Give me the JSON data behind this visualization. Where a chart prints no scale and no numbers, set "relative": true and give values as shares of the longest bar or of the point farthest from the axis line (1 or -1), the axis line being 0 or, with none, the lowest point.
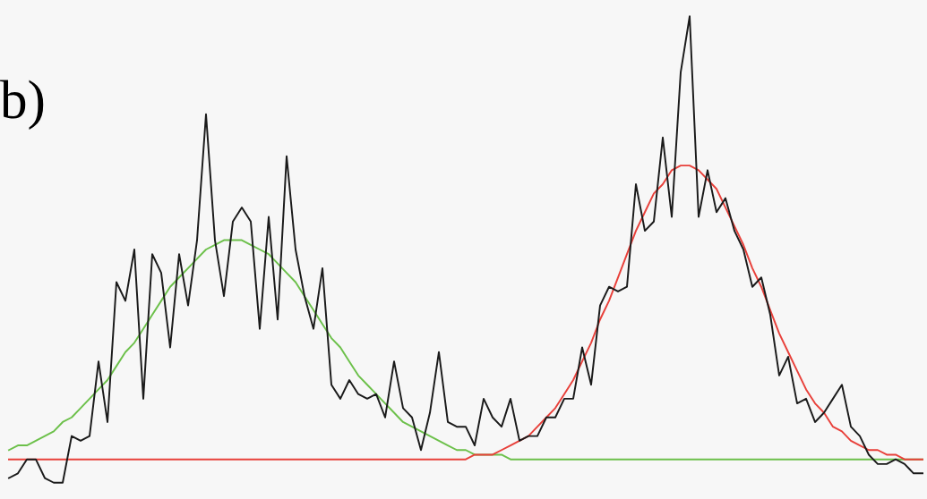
{
  "chart_data": {
    "type": "line",
    "relative": true,
    "annotations": [
      "b)"
    ],
    "categories": [
      null,
      null,
      null,
      null,
      null,
      null,
      null,
      null,
      null,
      null,
      null,
      null,
      null,
      null,
      null,
      null,
      null,
      null,
      null,
      null,
      null,
      null,
      null,
      null,
      null,
      null,
      null,
      null,
      null,
      null,
      null,
      null,
      null,
      null,
      null,
      null,
      null,
      null,
      null,
      null,
      null,
      null,
      null,
      null,
      null,
      null,
      null,
      null,
      null,
      null,
      null,
      null,
      null,
      null,
      null,
      null,
      null,
      null,
      null,
      null,
      null,
      null,
      null,
      null,
      null,
      null,
      null,
      null,
      null,
      null,
      null,
      null,
      null,
      null,
      null,
      null,
      null,
      null,
      null,
      null,
      null,
      null,
      null,
      null,
      null,
      null,
      null,
      null,
      null,
      null,
      null,
      null,
      null,
      null,
      null,
      null,
      null,
      null,
      null,
      null,
      null,
      null,
      null
    ],
    "series": [
      {
        "color": "#6cc04a",
        "values": [
          0.07,
          0.08,
          0.08,
          0.09,
          0.1,
          0.11,
          0.13,
          0.14,
          0.16,
          0.18,
          0.2,
          0.22,
          0.25,
          0.28,
          0.3,
          0.33,
          0.36,
          0.39,
          0.42,
          0.44,
          0.46,
          0.48,
          0.5,
          0.51,
          0.52,
          0.52,
          0.52,
          0.51,
          0.5,
          0.49,
          0.47,
          0.45,
          0.43,
          0.4,
          0.37,
          0.34,
          0.31,
          0.29,
          0.26,
          0.23,
          0.21,
          0.19,
          0.17,
          0.15,
          0.13,
          0.12,
          0.11,
          0.1,
          0.09,
          0.08,
          0.07,
          0.07,
          0.06,
          0.06,
          0.06,
          0.06,
          0.05,
          0.05,
          0.05,
          0.05,
          0.05,
          0.05,
          0.05,
          0.05,
          0.05,
          0.05,
          0.05,
          0.05,
          0.05,
          0.05,
          0.05,
          0.05,
          0.05,
          0.05,
          0.05,
          0.05,
          0.05,
          0.05,
          0.05,
          0.05,
          0.05,
          0.05,
          0.05,
          0.05,
          0.05,
          0.05,
          0.05,
          0.05,
          0.05,
          0.05,
          0.05,
          0.05,
          0.05,
          0.05,
          0.05,
          0.05,
          0.05,
          0.05,
          0.05,
          0.05,
          0.05,
          0.05,
          0.05
        ]
      },
      {
        "color": "#e8403a",
        "values": [
          0.05,
          0.05,
          0.05,
          0.05,
          0.05,
          0.05,
          0.05,
          0.05,
          0.05,
          0.05,
          0.05,
          0.05,
          0.05,
          0.05,
          0.05,
          0.05,
          0.05,
          0.05,
          0.05,
          0.05,
          0.05,
          0.05,
          0.05,
          0.05,
          0.05,
          0.05,
          0.05,
          0.05,
          0.05,
          0.05,
          0.05,
          0.05,
          0.05,
          0.05,
          0.05,
          0.05,
          0.05,
          0.05,
          0.05,
          0.05,
          0.05,
          0.05,
          0.05,
          0.05,
          0.05,
          0.05,
          0.05,
          0.05,
          0.05,
          0.05,
          0.05,
          0.05,
          0.06,
          0.06,
          0.06,
          0.07,
          0.08,
          0.09,
          0.1,
          0.12,
          0.14,
          0.16,
          0.19,
          0.22,
          0.26,
          0.3,
          0.35,
          0.39,
          0.44,
          0.49,
          0.54,
          0.58,
          0.62,
          0.64,
          0.67,
          0.68,
          0.68,
          0.67,
          0.65,
          0.63,
          0.59,
          0.55,
          0.51,
          0.46,
          0.42,
          0.37,
          0.32,
          0.28,
          0.24,
          0.2,
          0.17,
          0.15,
          0.12,
          0.11,
          0.09,
          0.08,
          0.07,
          0.07,
          0.06,
          0.06,
          0.05,
          0.05,
          0.05
        ]
      },
      {
        "color": "#1a1a1a",
        "values": [
          0.01,
          0.02,
          0.05,
          0.05,
          0.01,
          0.0,
          0,
          0.1,
          0.09,
          0.1,
          0.26,
          0.13,
          0.43,
          0.39,
          0.5,
          0.18,
          0.49,
          0.45,
          0.29,
          0.49,
          0.38,
          0.52,
          0.79,
          0.52,
          0.4,
          0.56,
          0.59,
          0.56,
          0.33,
          0.57,
          0.35,
          0.7,
          0.5,
          0.4,
          0.33,
          0.46,
          0.21,
          0.18,
          0.22,
          0.19,
          0.18,
          0.19,
          0.14,
          0.26,
          0.16,
          0.14,
          0.07,
          0.15,
          0.28,
          0.13,
          0.12,
          0.12,
          0.08,
          0.18,
          0.14,
          0.12,
          0.18,
          0.09,
          0.1,
          0.1,
          0.14,
          0.14,
          0.18,
          0.18,
          0.29,
          0.21,
          0.38,
          0.42,
          0.41,
          0.42,
          0.64,
          0.54,
          0.56,
          0.74,
          0.57,
          0.88,
          1.0,
          0.57,
          0.67,
          0.58,
          0.61,
          0.54,
          0.5,
          0.42,
          0.44,
          0.36,
          0.23,
          0.27,
          0.17,
          0.18,
          0.13,
          0.15,
          0.18,
          0.21,
          0.12,
          0.1,
          0.06,
          0.04,
          0.04,
          0.05,
          0.04,
          0.02,
          0.02
        ]
      }
    ]
  }
}
